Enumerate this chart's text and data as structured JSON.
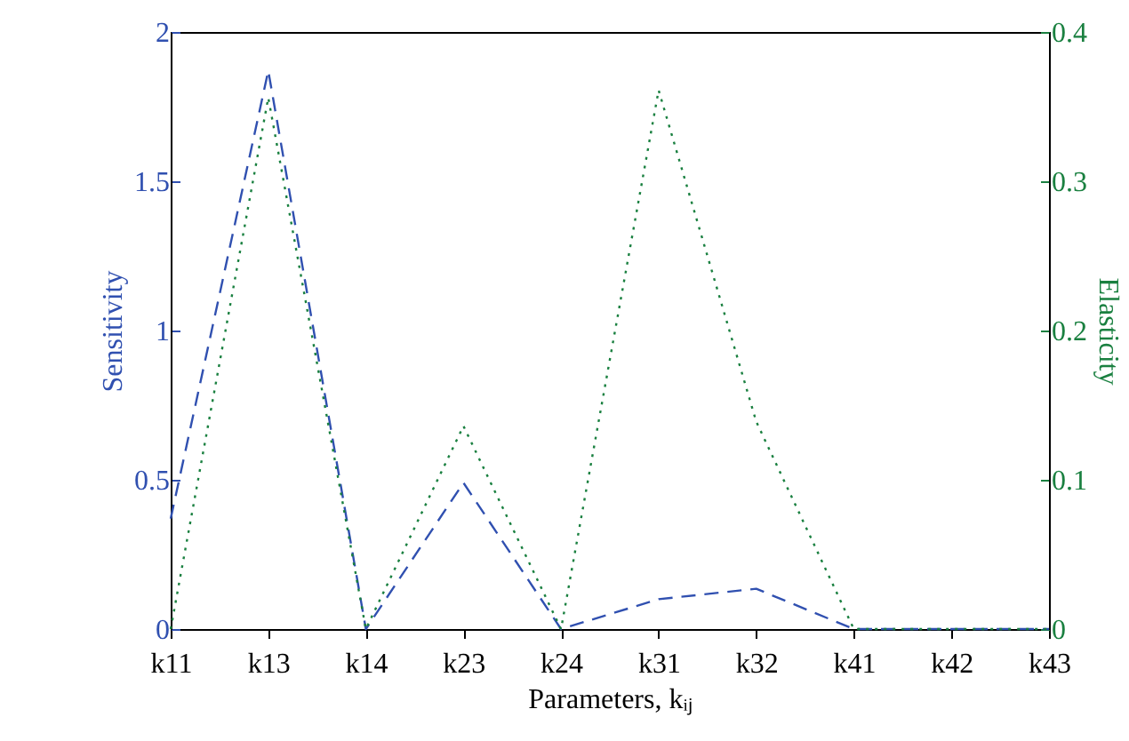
{
  "chart_data": {
    "type": "line",
    "xlabel": "Parameters, kᵢⱼ",
    "ylabel": "Sensitivity",
    "y2label": "Elasticity",
    "categories": [
      "k11",
      "k13",
      "k14",
      "k23",
      "k24",
      "k31",
      "k32",
      "k41",
      "k42",
      "k43"
    ],
    "series": [
      {
        "name": null,
        "color": "#3050b0",
        "line_style": "dashed",
        "values": [
          0.37,
          1.87,
          0,
          0.49,
          0,
          0.1,
          0.135,
          0,
          0,
          0
        ]
      },
      {
        "name": null,
        "color": "#1a8040",
        "line_style": "dotted",
        "axis": "y2",
        "values": [
          0,
          0.356,
          0,
          0.136,
          0,
          0.361,
          0.139,
          0,
          0,
          0
        ]
      }
    ],
    "ylim": [
      0,
      2
    ],
    "yticks": [
      0,
      0.5,
      1,
      1.5,
      2
    ],
    "y2lim": [
      0,
      0.4
    ],
    "y2ticks": [
      0,
      0.1,
      0.2,
      0.3,
      0.4
    ],
    "grid": false
  }
}
